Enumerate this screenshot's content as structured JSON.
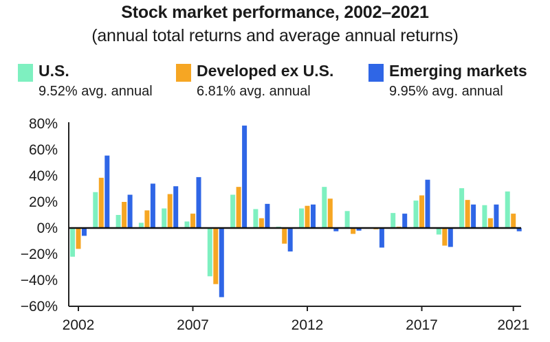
{
  "chart_data": {
    "type": "bar",
    "title": "Stock market performance, 2002–2021",
    "subtitle": "(annual total returns and average annual returns)",
    "categories": [
      "2002",
      "2003",
      "2004",
      "2005",
      "2006",
      "2007",
      "2008",
      "2009",
      "2010",
      "2011",
      "2012",
      "2013",
      "2014",
      "2015",
      "2016",
      "2017",
      "2018",
      "2019",
      "2020",
      "2021"
    ],
    "x_tick_labels": [
      "2002",
      "2007",
      "2012",
      "2017",
      "2021"
    ],
    "y_tick_labels": [
      "80%",
      "60%",
      "40%",
      "20%",
      "0%",
      "−20%",
      "−40%",
      "−60%"
    ],
    "y_ticks": [
      80,
      60,
      40,
      20,
      0,
      -20,
      -40,
      -60
    ],
    "ylim": [
      -60,
      80
    ],
    "grid": false,
    "legend_position": "top",
    "series": [
      {
        "name": "U.S.",
        "avg_label": "9.52% avg. annual",
        "color": "#7ef0c0",
        "values": [
          -22,
          27.5,
          10,
          4,
          15,
          5,
          -37,
          25.5,
          14.5,
          1,
          15,
          31.5,
          13,
          0.5,
          11.5,
          21,
          -5,
          30.5,
          17.5,
          28
        ]
      },
      {
        "name": "Developed ex U.S.",
        "avg_label": "6.81% avg. annual",
        "color": "#f6a623",
        "values": [
          -16,
          38.5,
          20,
          13.5,
          26,
          11,
          -43,
          31.5,
          7.5,
          -12,
          17,
          22.5,
          -4.5,
          -1,
          1,
          25,
          -13.5,
          21.5,
          7.5,
          11
        ]
      },
      {
        "name": "Emerging markets",
        "avg_label": "9.95% avg. annual",
        "color": "#2f66e6",
        "values": [
          -6,
          55.5,
          25.5,
          34,
          32,
          39,
          -53,
          78.5,
          18.5,
          -18,
          18,
          -2.5,
          -2,
          -15,
          11,
          37,
          -14.5,
          18,
          18,
          -2.5
        ]
      }
    ]
  }
}
